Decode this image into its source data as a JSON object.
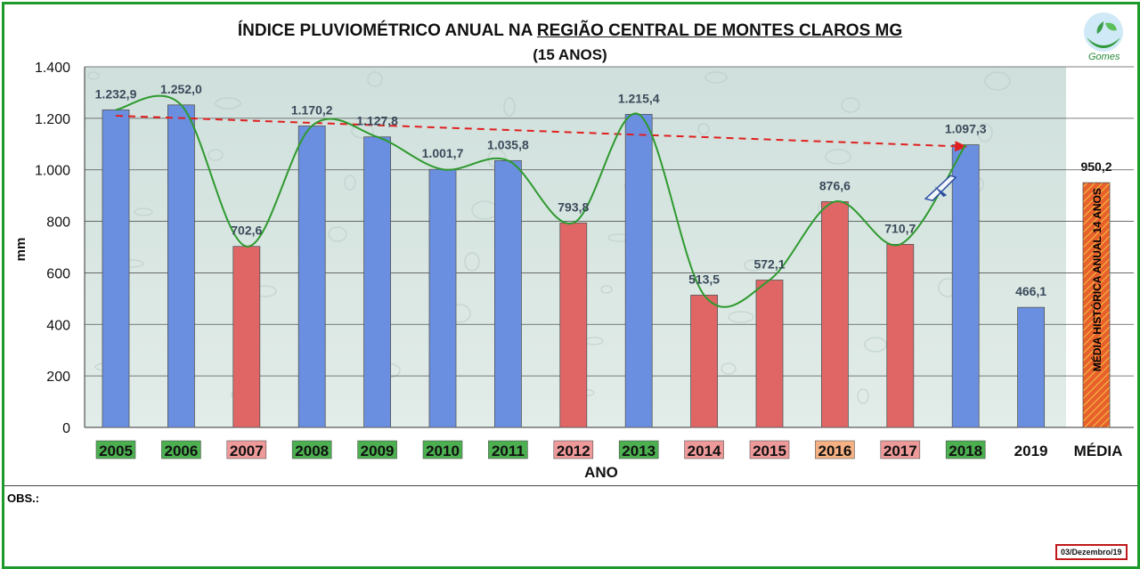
{
  "title_part1": "ÍNDICE PLUVIOMÉTRICO ANUAL NA ",
  "title_part2": "REGIÃO CENTRAL DE MONTES CLAROS MG",
  "subtitle": "(15 ANOS)",
  "logo_text": "Gomes",
  "obs_label": "OBS.:",
  "date_stamp": "03/Dezembro/19",
  "chart_data": {
    "type": "bar",
    "title": "ÍNDICE PLUVIOMÉTRICO ANUAL NA REGIÃO CENTRAL DE MONTES CLAROS MG (15 ANOS)",
    "xlabel": "ANO",
    "ylabel": "mm",
    "ylim": [
      0,
      1400
    ],
    "yticks": [
      0,
      200,
      400,
      600,
      800,
      1000,
      1200,
      1400
    ],
    "ytick_labels": [
      "0",
      "200",
      "400",
      "600",
      "800",
      "1.000",
      "1.200",
      "1.400"
    ],
    "grid": true,
    "categories": [
      "2005",
      "2006",
      "2007",
      "2008",
      "2009",
      "2010",
      "2011",
      "2012",
      "2013",
      "2014",
      "2015",
      "2016",
      "2017",
      "2018",
      "2019",
      "MÉDIA"
    ],
    "values": [
      1232.9,
      1252.0,
      702.6,
      1170.2,
      1127.8,
      1001.7,
      1035.8,
      793.8,
      1215.4,
      513.5,
      572.1,
      876.6,
      710.7,
      1097.3,
      466.1,
      950.2
    ],
    "value_labels": [
      "1.232,9",
      "1.252,0",
      "702,6",
      "1.170,2",
      "1.127,8",
      "1.001,7",
      "1.035,8",
      "793,8",
      "1.215,4",
      "513,5",
      "572,1",
      "876,6",
      "710,7",
      "1.097,3",
      "466,1",
      "950,2"
    ],
    "bar_colors": [
      "#6a8fe0",
      "#6a8fe0",
      "#e06666",
      "#6a8fe0",
      "#6a8fe0",
      "#6a8fe0",
      "#6a8fe0",
      "#e06666",
      "#6a8fe0",
      "#e06666",
      "#e06666",
      "#e06666",
      "#e06666",
      "#6a8fe0",
      "#6a8fe0",
      "#e0542a"
    ],
    "category_label_bg": [
      "#4caf50",
      "#4caf50",
      "#ef9a9a",
      "#4caf50",
      "#4caf50",
      "#4caf50",
      "#4caf50",
      "#ef9a9a",
      "#4caf50",
      "#ef9a9a",
      "#ef9a9a",
      "#f5b183",
      "#ef9a9a",
      "#4caf50",
      "none",
      "none"
    ],
    "average_bar_label": "MÉDIA HISTÓRICA ANUAL  14 ANOS",
    "trend_line": {
      "from": "2005",
      "to": "2018",
      "start": 1210,
      "end": 1090,
      "color": "#e02020"
    },
    "smooth_line": {
      "color": "#2e9a2e",
      "through": [
        "2005",
        "2006",
        "2007",
        "2008",
        "2009",
        "2010",
        "2011",
        "2012",
        "2013",
        "2014",
        "2015",
        "2016",
        "2017",
        "2018"
      ]
    }
  }
}
